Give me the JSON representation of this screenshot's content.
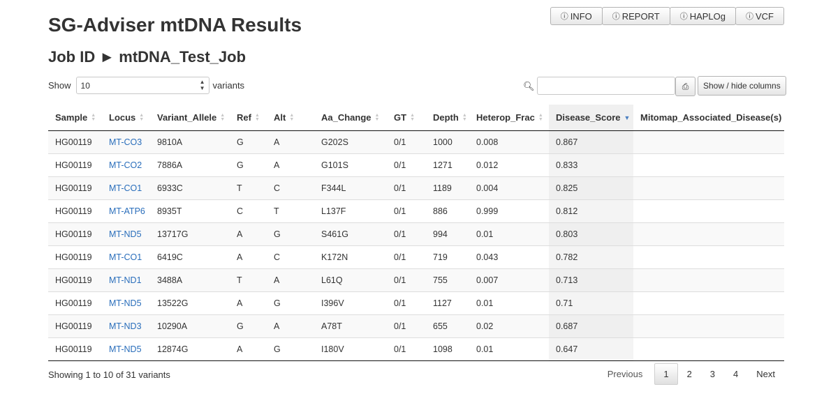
{
  "page": {
    "title": "SG-Adviser mtDNA Results",
    "job_label": "Job ID",
    "job_separator": "►",
    "job_id": "mtDNA_Test_Job"
  },
  "top_buttons": [
    {
      "label": "INFO",
      "icon": "info-circle-icon"
    },
    {
      "label": "REPORT",
      "icon": "info-circle-icon"
    },
    {
      "label": "HAPLOg",
      "icon": "info-circle-icon"
    },
    {
      "label": "VCF",
      "icon": "info-circle-icon"
    }
  ],
  "controls": {
    "show_label": "Show",
    "length_value": "10",
    "variants_label": "variants",
    "search_value": "",
    "colvis_label": "Show / hide columns"
  },
  "columns": [
    "Sample",
    "Locus",
    "Variant_Allele",
    "Ref",
    "Alt",
    "Aa_Change",
    "GT",
    "Depth",
    "Heterop_Frac",
    "Disease_Score",
    "Mitomap_Associated_Disease(s)"
  ],
  "rows": [
    [
      "HG00119",
      "MT-CO3",
      "9810A",
      "G",
      "A",
      "G202S",
      "0/1",
      "1000",
      "0.008",
      "0.867",
      ""
    ],
    [
      "HG00119",
      "MT-CO2",
      "7886A",
      "G",
      "A",
      "G101S",
      "0/1",
      "1271",
      "0.012",
      "0.833",
      ""
    ],
    [
      "HG00119",
      "MT-CO1",
      "6933C",
      "T",
      "C",
      "F344L",
      "0/1",
      "1189",
      "0.004",
      "0.825",
      ""
    ],
    [
      "HG00119",
      "MT-ATP6",
      "8935T",
      "C",
      "T",
      "L137F",
      "0/1",
      "886",
      "0.999",
      "0.812",
      ""
    ],
    [
      "HG00119",
      "MT-ND5",
      "13717G",
      "A",
      "G",
      "S461G",
      "0/1",
      "994",
      "0.01",
      "0.803",
      ""
    ],
    [
      "HG00119",
      "MT-CO1",
      "6419C",
      "A",
      "C",
      "K172N",
      "0/1",
      "719",
      "0.043",
      "0.782",
      ""
    ],
    [
      "HG00119",
      "MT-ND1",
      "3488A",
      "T",
      "A",
      "L61Q",
      "0/1",
      "755",
      "0.007",
      "0.713",
      ""
    ],
    [
      "HG00119",
      "MT-ND5",
      "13522G",
      "A",
      "G",
      "I396V",
      "0/1",
      "1127",
      "0.01",
      "0.71",
      ""
    ],
    [
      "HG00119",
      "MT-ND3",
      "10290A",
      "G",
      "A",
      "A78T",
      "0/1",
      "655",
      "0.02",
      "0.687",
      ""
    ],
    [
      "HG00119",
      "MT-ND5",
      "12874G",
      "A",
      "G",
      "I180V",
      "0/1",
      "1098",
      "0.01",
      "0.647",
      ""
    ]
  ],
  "sorted_column": "Disease_Score",
  "footer": {
    "info": "Showing 1 to 10 of 31 variants",
    "previous": "Previous",
    "pages": [
      "1",
      "2",
      "3",
      "4"
    ],
    "current_page": "1",
    "next": "Next"
  },
  "colors": {
    "link": "#2a6ebb",
    "sort_active": "#4a7fc1"
  }
}
